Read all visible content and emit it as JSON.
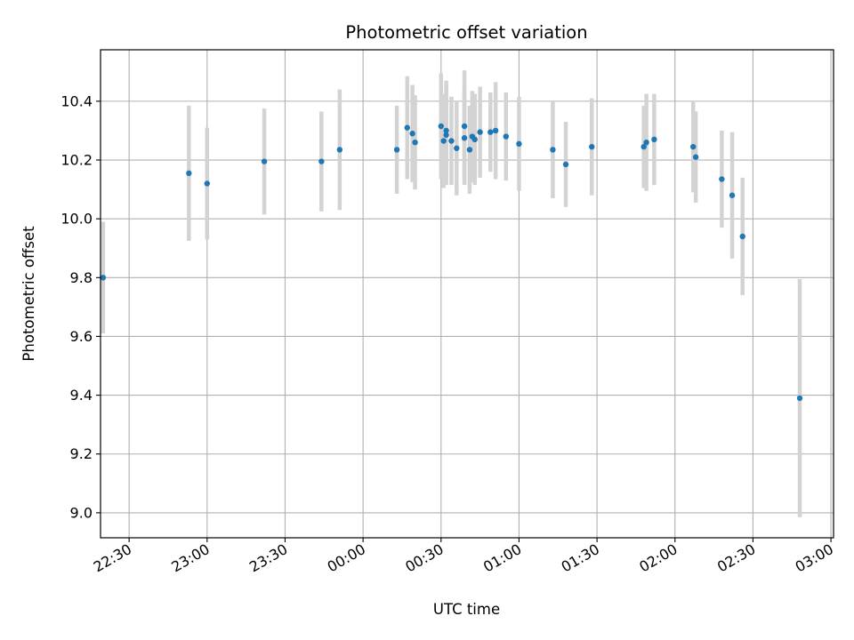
{
  "chart_data": {
    "type": "scatter",
    "title": "Photometric offset variation",
    "xlabel": "UTC time",
    "ylabel": "Photometric offset",
    "x_tick_labels": [
      "22:30",
      "23:00",
      "23:30",
      "00:00",
      "00:30",
      "01:00",
      "01:30",
      "02:00",
      "02:30",
      "03:00"
    ],
    "y_tick_labels": [
      "9.0",
      "9.2",
      "9.4",
      "9.6",
      "9.8",
      "10.0",
      "10.2",
      "10.4"
    ],
    "y_ticks": [
      9.0,
      9.2,
      9.4,
      9.6,
      9.8,
      10.0,
      10.2,
      10.4
    ],
    "xlim": [
      "22:19",
      "03:01"
    ],
    "ylim": [
      8.915,
      10.575
    ],
    "grid": true,
    "colors": {
      "point": "#1f77b4",
      "errorbar": "#d3d3d3",
      "grid": "#b0b0b0"
    },
    "points": [
      {
        "x": "22:20",
        "y": 9.8,
        "err": 0.19
      },
      {
        "x": "22:53",
        "y": 10.155,
        "err": 0.23
      },
      {
        "x": "23:00",
        "y": 10.12,
        "err": 0.19
      },
      {
        "x": "23:22",
        "y": 10.195,
        "err": 0.18
      },
      {
        "x": "23:44",
        "y": 10.195,
        "err": 0.17
      },
      {
        "x": "23:51",
        "y": 10.235,
        "err": 0.205
      },
      {
        "x": "00:13",
        "y": 10.235,
        "err": 0.15
      },
      {
        "x": "00:17",
        "y": 10.31,
        "err": 0.175
      },
      {
        "x": "00:19",
        "y": 10.29,
        "err": 0.165
      },
      {
        "x": "00:20",
        "y": 10.26,
        "err": 0.16
      },
      {
        "x": "00:30",
        "y": 10.315,
        "err": 0.18
      },
      {
        "x": "00:31",
        "y": 10.265,
        "err": 0.16
      },
      {
        "x": "00:32",
        "y": 10.3,
        "err": 0.17
      },
      {
        "x": "00:32",
        "y": 10.285,
        "err": 0.17
      },
      {
        "x": "00:34",
        "y": 10.265,
        "err": 0.15
      },
      {
        "x": "00:36",
        "y": 10.24,
        "err": 0.16
      },
      {
        "x": "00:39",
        "y": 10.315,
        "err": 0.19
      },
      {
        "x": "00:39",
        "y": 10.275,
        "err": 0.16
      },
      {
        "x": "00:41",
        "y": 10.235,
        "err": 0.15
      },
      {
        "x": "00:42",
        "y": 10.28,
        "err": 0.155
      },
      {
        "x": "00:43",
        "y": 10.27,
        "err": 0.155
      },
      {
        "x": "00:45",
        "y": 10.295,
        "err": 0.155
      },
      {
        "x": "00:49",
        "y": 10.295,
        "err": 0.135
      },
      {
        "x": "00:51",
        "y": 10.3,
        "err": 0.165
      },
      {
        "x": "00:55",
        "y": 10.28,
        "err": 0.15
      },
      {
        "x": "01:00",
        "y": 10.255,
        "err": 0.16
      },
      {
        "x": "01:13",
        "y": 10.235,
        "err": 0.165
      },
      {
        "x": "01:18",
        "y": 10.185,
        "err": 0.145
      },
      {
        "x": "01:28",
        "y": 10.245,
        "err": 0.165
      },
      {
        "x": "01:48",
        "y": 10.245,
        "err": 0.14
      },
      {
        "x": "01:49",
        "y": 10.26,
        "err": 0.165
      },
      {
        "x": "01:52",
        "y": 10.27,
        "err": 0.155
      },
      {
        "x": "02:07",
        "y": 10.245,
        "err": 0.155
      },
      {
        "x": "02:08",
        "y": 10.21,
        "err": 0.155
      },
      {
        "x": "02:18",
        "y": 10.135,
        "err": 0.165
      },
      {
        "x": "02:22",
        "y": 10.08,
        "err": 0.215
      },
      {
        "x": "02:26",
        "y": 9.94,
        "err": 0.2
      },
      {
        "x": "02:48",
        "y": 9.39,
        "err": 0.405
      }
    ]
  }
}
